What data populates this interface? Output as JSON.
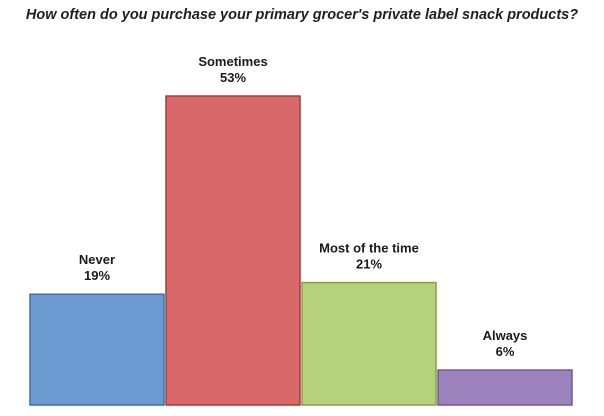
{
  "chart_data": {
    "type": "bar",
    "title": "How often do you purchase your primary grocer's private label snack products?",
    "xlabel": "",
    "ylabel": "",
    "ylim": [
      0,
      60
    ],
    "grid": false,
    "legend": "none",
    "categories": [
      "Never",
      "Sometimes",
      "Most of the time",
      "Always"
    ],
    "values": [
      19,
      53,
      21,
      6
    ],
    "data_labels": [
      "19%",
      "53%",
      "21%",
      "6%"
    ],
    "colors": [
      "#6c9bd2",
      "#d9686a",
      "#b5d17b",
      "#9b82bd"
    ],
    "border_colors": [
      "#3f6fa6",
      "#a63c3c",
      "#84a246",
      "#6f5a94"
    ]
  }
}
